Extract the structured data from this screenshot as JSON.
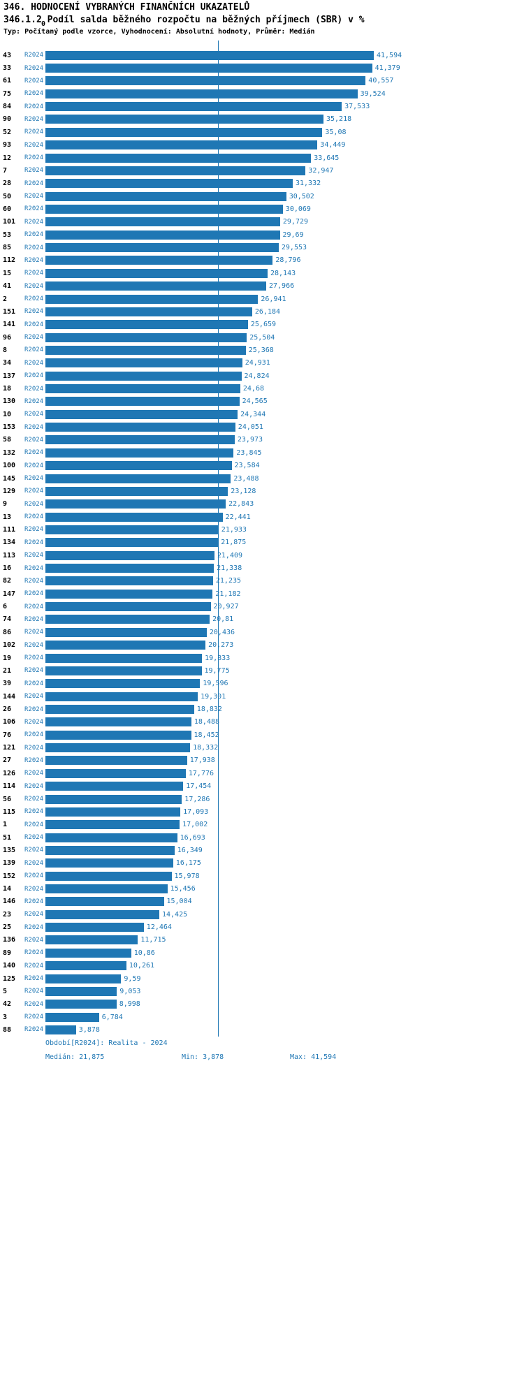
{
  "header": {
    "title": "346. HODNOCENÍ VYBRANÝCH FINANČNÍCH UKAZATELŮ",
    "subtitle": "346.1.2 Podíl salda běžného rozpočtu na běžných příjmech (SBR) v %",
    "meta": "Typ: Počítaný podle vzorce, Vyhodnocení: Absolutní hodnoty, Průměr: Medián"
  },
  "colors": {
    "accent": "#1f77b4",
    "bar": "#1f77b4",
    "median_line": "#1f77b4",
    "text": "#000000",
    "background": "#ffffff"
  },
  "chart_data": {
    "type": "bar",
    "orientation": "horizontal",
    "title": "346.1.2 Podíl salda běžného rozpočtu na běžných příjmech (SBR) v %",
    "xlabel": "",
    "ylabel": "",
    "xlim": [
      0,
      44
    ],
    "grid": false,
    "legend": "none",
    "axis_zero_label": "0",
    "series_label": "R2024",
    "median_value": 21.875,
    "min_value": 3.878,
    "max_value": 41.594,
    "categories": [
      "43",
      "33",
      "61",
      "75",
      "84",
      "90",
      "52",
      "93",
      "12",
      "7",
      "28",
      "50",
      "60",
      "101",
      "53",
      "85",
      "112",
      "15",
      "41",
      "2",
      "151",
      "141",
      "96",
      "8",
      "34",
      "137",
      "18",
      "130",
      "10",
      "153",
      "58",
      "132",
      "100",
      "145",
      "129",
      "9",
      "13",
      "111",
      "134",
      "113",
      "16",
      "82",
      "147",
      "6",
      "74",
      "86",
      "102",
      "19",
      "21",
      "39",
      "144",
      "26",
      "106",
      "76",
      "121",
      "27",
      "126",
      "114",
      "56",
      "115",
      "1",
      "51",
      "135",
      "139",
      "152",
      "14",
      "146",
      "23",
      "25",
      "136",
      "89",
      "140",
      "125",
      "5",
      "42",
      "3",
      "88"
    ],
    "values": [
      41.594,
      41.379,
      40.557,
      39.524,
      37.533,
      35.218,
      35.08,
      34.449,
      33.645,
      32.947,
      31.332,
      30.502,
      30.069,
      29.729,
      29.69,
      29.553,
      28.796,
      28.143,
      27.966,
      26.941,
      26.184,
      25.659,
      25.504,
      25.368,
      24.931,
      24.824,
      24.68,
      24.565,
      24.344,
      24.051,
      23.973,
      23.845,
      23.584,
      23.488,
      23.128,
      22.843,
      22.441,
      21.933,
      21.875,
      21.409,
      21.338,
      21.235,
      21.182,
      20.927,
      20.81,
      20.436,
      20.273,
      19.833,
      19.775,
      19.596,
      19.301,
      18.832,
      18.488,
      18.452,
      18.332,
      17.938,
      17.776,
      17.454,
      17.286,
      17.093,
      17.002,
      16.693,
      16.349,
      16.175,
      15.978,
      15.456,
      15.004,
      14.425,
      12.464,
      11.715,
      10.86,
      10.261,
      9.59,
      9.053,
      8.998,
      6.784,
      3.878
    ],
    "value_labels": [
      "41,594",
      "41,379",
      "40,557",
      "39,524",
      "37,533",
      "35,218",
      "35,08",
      "34,449",
      "33,645",
      "32,947",
      "31,332",
      "30,502",
      "30,069",
      "29,729",
      "29,69",
      "29,553",
      "28,796",
      "28,143",
      "27,966",
      "26,941",
      "26,184",
      "25,659",
      "25,504",
      "25,368",
      "24,931",
      "24,824",
      "24,68",
      "24,565",
      "24,344",
      "24,051",
      "23,973",
      "23,845",
      "23,584",
      "23,488",
      "23,128",
      "22,843",
      "22,441",
      "21,933",
      "21,875",
      "21,409",
      "21,338",
      "21,235",
      "21,182",
      "20,927",
      "20,81",
      "20,436",
      "20,273",
      "19,833",
      "19,775",
      "19,596",
      "19,301",
      "18,832",
      "18,488",
      "18,452",
      "18,332",
      "17,938",
      "17,776",
      "17,454",
      "17,286",
      "17,093",
      "17,002",
      "16,693",
      "16,349",
      "16,175",
      "15,978",
      "15,456",
      "15,004",
      "14,425",
      "12,464",
      "11,715",
      "10,86",
      "10,261",
      "9,59",
      "9,053",
      "8,998",
      "6,784",
      "3,878"
    ]
  },
  "footer": {
    "period": "Období[R2024]: Realita - 2024",
    "median": "Medián: 21,875",
    "min": "Min: 3,878",
    "max": "Max: 41,594"
  }
}
